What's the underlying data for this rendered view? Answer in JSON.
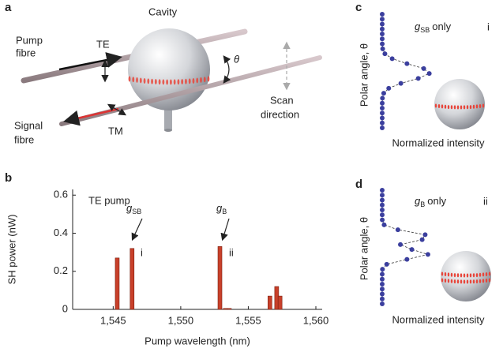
{
  "panels": {
    "a": {
      "label": "a",
      "cavity": "Cavity",
      "pump_fibre": [
        "Pump",
        "fibre"
      ],
      "te": "TE",
      "theta": "θ",
      "tm": "TM",
      "signal_fibre": [
        "Signal",
        "fibre"
      ],
      "scan_direction": [
        "Scan",
        "direction"
      ]
    },
    "c": {
      "label": "c",
      "symbol": "g",
      "subscript": "SB",
      "suffix": "only",
      "mode": "i",
      "ylabel": "Polar angle, θ",
      "xlabel": "Normalized intensity"
    },
    "d": {
      "label": "d",
      "symbol": "g",
      "subscript": "B",
      "suffix": "only",
      "mode": "ii",
      "ylabel": "Polar angle, θ",
      "xlabel": "Normalized intensity"
    }
  },
  "chart_data": {
    "type": "bar",
    "panel_label": "b",
    "pump_label": "TE pump",
    "callouts": [
      {
        "symbol": "g",
        "subscript": "SB",
        "mode": "i"
      },
      {
        "symbol": "g",
        "subscript": "B",
        "mode": "ii"
      }
    ],
    "xlabel": "Pump wavelength (nm)",
    "ylabel": "SH power (nW)",
    "x": [
      1545.3,
      1546.4,
      1552.9,
      1553.3,
      1553.6,
      1556.6,
      1557.1,
      1557.35
    ],
    "values": [
      0.27,
      0.32,
      0.33,
      0.005,
      0.005,
      0.07,
      0.12,
      0.07
    ],
    "color": "#c8402a",
    "xlim": [
      1542,
      1560
    ],
    "ylim": [
      0,
      0.63
    ],
    "xticks": [
      {
        "value": 1545,
        "label": "1,545"
      },
      {
        "value": 1550,
        "label": "1,550"
      },
      {
        "value": 1555,
        "label": "1,555"
      },
      {
        "value": 1560,
        "label": "1,560"
      }
    ],
    "yticks": [
      0,
      0.2,
      0.4,
      0.6
    ]
  }
}
